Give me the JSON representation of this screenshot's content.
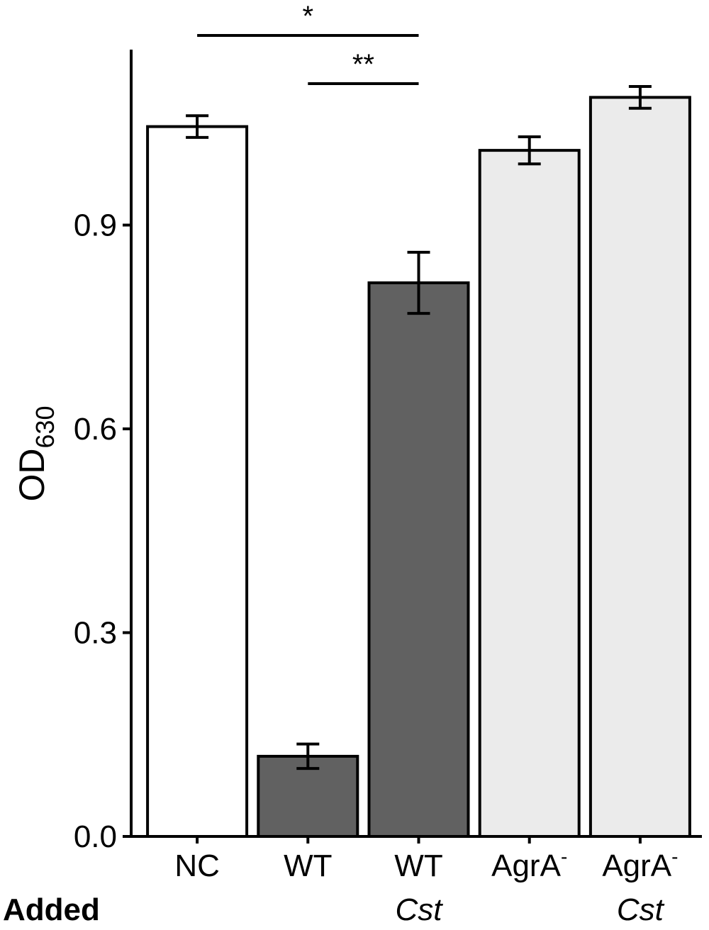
{
  "chart_data": {
    "type": "bar",
    "ylabel": "OD",
    "ylabel_subscript": "630",
    "ylim": [
      0,
      1.1
    ],
    "yticks": [
      0.0,
      0.3,
      0.6,
      0.9
    ],
    "ytick_labels": [
      "0.0",
      "0.3",
      "0.6",
      "0.9"
    ],
    "row_label": "Added",
    "categories": [
      {
        "label": "NC",
        "superscript": "",
        "sublabel": "",
        "value": 1.045,
        "error": 0.016,
        "fill": "#ffffff"
      },
      {
        "label": "WT",
        "superscript": "",
        "sublabel": "",
        "value": 0.118,
        "error": 0.018,
        "fill": "#616161"
      },
      {
        "label": "WT",
        "superscript": "",
        "sublabel": "Cst",
        "value": 0.815,
        "error": 0.045,
        "fill": "#616161"
      },
      {
        "label": "AgrA",
        "superscript": "-",
        "sublabel": "",
        "value": 1.01,
        "error": 0.02,
        "fill": "#ebebeb"
      },
      {
        "label": "AgrA",
        "superscript": "-",
        "sublabel": "Cst",
        "value": 1.088,
        "error": 0.016,
        "fill": "#ebebeb"
      }
    ],
    "significance": [
      {
        "from": 0,
        "to": 2,
        "label": "*"
      },
      {
        "from": 1,
        "to": 2,
        "label": "**"
      }
    ],
    "grid": false,
    "legend": "none"
  }
}
